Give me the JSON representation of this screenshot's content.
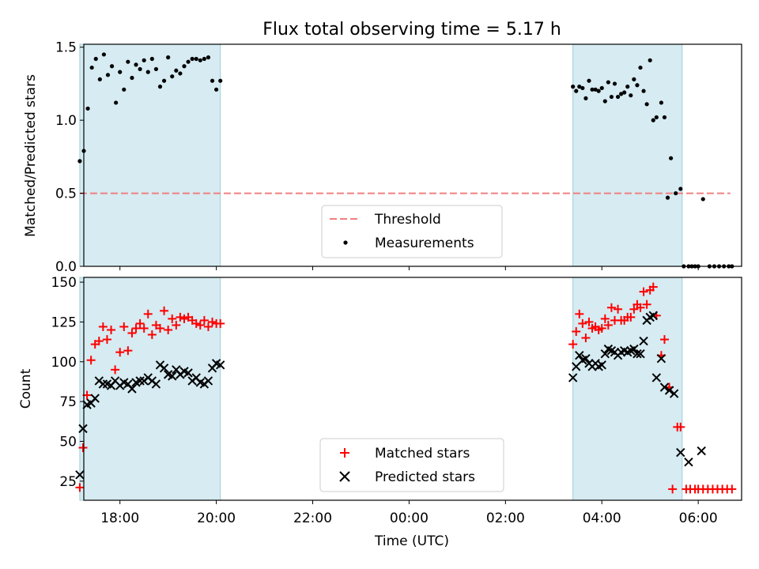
{
  "chart_data": [
    {
      "type": "scatter",
      "title": "Flux total observing time = 5.17 h",
      "ylabel": "Matched/Predicted stars",
      "xlim": [
        "17:15",
        "06:54"
      ],
      "ylim": [
        0,
        1.52
      ],
      "yticks": [
        "0.0",
        "0.5",
        "1.0",
        "1.5"
      ],
      "ytick_values": [
        0,
        0.5,
        1.0,
        1.5
      ],
      "shaded_intervals": [
        [
          "17:10",
          "20:05"
        ],
        [
          "03:24",
          "05:40"
        ]
      ],
      "threshold": {
        "y": 0.5,
        "x_range": [
          "17:10",
          "06:40"
        ],
        "color": "#f08080"
      },
      "legend": {
        "position": "lower center",
        "entries": [
          "Threshold",
          "Measurements"
        ]
      },
      "series": [
        {
          "name": "Measurements",
          "marker": "dot",
          "color": "#000000",
          "points": [
            [
              "17:10",
              0.72
            ],
            [
              "17:15",
              0.79
            ],
            [
              "17:20",
              1.08
            ],
            [
              "17:25",
              1.36
            ],
            [
              "17:30",
              1.42
            ],
            [
              "17:35",
              1.28
            ],
            [
              "17:40",
              1.45
            ],
            [
              "17:45",
              1.31
            ],
            [
              "17:50",
              1.37
            ],
            [
              "17:55",
              1.12
            ],
            [
              "18:00",
              1.33
            ],
            [
              "18:05",
              1.21
            ],
            [
              "18:10",
              1.4
            ],
            [
              "18:15",
              1.29
            ],
            [
              "18:20",
              1.38
            ],
            [
              "18:25",
              1.35
            ],
            [
              "18:30",
              1.41
            ],
            [
              "18:35",
              1.33
            ],
            [
              "18:40",
              1.42
            ],
            [
              "18:45",
              1.35
            ],
            [
              "18:50",
              1.23
            ],
            [
              "18:55",
              1.27
            ],
            [
              "19:00",
              1.43
            ],
            [
              "19:05",
              1.3
            ],
            [
              "19:10",
              1.34
            ],
            [
              "19:15",
              1.32
            ],
            [
              "19:20",
              1.37
            ],
            [
              "19:25",
              1.4
            ],
            [
              "19:30",
              1.42
            ],
            [
              "19:35",
              1.42
            ],
            [
              "19:40",
              1.41
            ],
            [
              "19:45",
              1.42
            ],
            [
              "19:50",
              1.43
            ],
            [
              "19:55",
              1.27
            ],
            [
              "20:00",
              1.21
            ],
            [
              "20:05",
              1.27
            ],
            [
              "03:24",
              1.23
            ],
            [
              "03:28",
              1.2
            ],
            [
              "03:32",
              1.23
            ],
            [
              "03:36",
              1.22
            ],
            [
              "03:40",
              1.15
            ],
            [
              "03:44",
              1.27
            ],
            [
              "03:48",
              1.21
            ],
            [
              "03:52",
              1.21
            ],
            [
              "03:56",
              1.2
            ],
            [
              "04:00",
              1.22
            ],
            [
              "04:04",
              1.13
            ],
            [
              "04:08",
              1.26
            ],
            [
              "04:12",
              1.16
            ],
            [
              "04:16",
              1.25
            ],
            [
              "04:20",
              1.16
            ],
            [
              "04:24",
              1.18
            ],
            [
              "04:28",
              1.19
            ],
            [
              "04:32",
              1.23
            ],
            [
              "04:36",
              1.17
            ],
            [
              "04:40",
              1.28
            ],
            [
              "04:44",
              1.24
            ],
            [
              "04:48",
              1.36
            ],
            [
              "04:52",
              1.2
            ],
            [
              "04:56",
              1.11
            ],
            [
              "05:00",
              1.41
            ],
            [
              "05:04",
              1.0
            ],
            [
              "05:08",
              1.02
            ],
            [
              "05:14",
              1.12
            ],
            [
              "05:18",
              1.02
            ],
            [
              "05:22",
              0.47
            ],
            [
              "05:26",
              0.74
            ],
            [
              "05:32",
              0.5
            ],
            [
              "05:38",
              0.53
            ],
            [
              "05:42",
              0.0
            ],
            [
              "05:48",
              0.0
            ],
            [
              "05:52",
              0.0
            ],
            [
              "05:56",
              0.0
            ],
            [
              "06:00",
              0.0
            ],
            [
              "06:06",
              0.46
            ],
            [
              "06:14",
              0.0
            ],
            [
              "06:20",
              0.0
            ],
            [
              "06:26",
              0.0
            ],
            [
              "06:32",
              0.0
            ],
            [
              "06:38",
              0.0
            ],
            [
              "06:42",
              0.0
            ]
          ]
        }
      ]
    },
    {
      "type": "scatter",
      "xlabel": "Time (UTC)",
      "ylabel": "Count",
      "xlim": [
        "17:15",
        "06:54"
      ],
      "ylim": [
        13,
        153
      ],
      "xticks": [
        "18:00",
        "20:00",
        "22:00",
        "00:00",
        "02:00",
        "04:00",
        "06:00"
      ],
      "yticks": [
        "25",
        "50",
        "75",
        "100",
        "125",
        "150"
      ],
      "ytick_values": [
        25,
        50,
        75,
        100,
        125,
        150
      ],
      "shaded_intervals": [
        [
          "17:10",
          "20:05"
        ],
        [
          "03:24",
          "05:40"
        ]
      ],
      "legend": {
        "position": "lower center",
        "entries": [
          "Matched stars",
          "Predicted stars"
        ]
      },
      "series": [
        {
          "name": "Matched stars",
          "marker": "plus",
          "color": "#ff0000",
          "points": [
            [
              "17:10",
              21
            ],
            [
              "17:14",
              46
            ],
            [
              "17:19",
              79
            ],
            [
              "17:24",
              101
            ],
            [
              "17:29",
              111
            ],
            [
              "17:34",
              113
            ],
            [
              "17:39",
              122
            ],
            [
              "17:44",
              114
            ],
            [
              "17:49",
              120
            ],
            [
              "17:54",
              95
            ],
            [
              "18:00",
              106
            ],
            [
              "18:05",
              122
            ],
            [
              "18:10",
              107
            ],
            [
              "18:15",
              118
            ],
            [
              "18:20",
              121
            ],
            [
              "18:25",
              124
            ],
            [
              "18:30",
              121
            ],
            [
              "18:35",
              130
            ],
            [
              "18:40",
              117
            ],
            [
              "18:45",
              123
            ],
            [
              "18:50",
              121
            ],
            [
              "18:55",
              132
            ],
            [
              "19:00",
              120
            ],
            [
              "19:05",
              127
            ],
            [
              "19:10",
              123
            ],
            [
              "19:15",
              128
            ],
            [
              "19:20",
              127
            ],
            [
              "19:25",
              128
            ],
            [
              "19:30",
              126
            ],
            [
              "19:35",
              124
            ],
            [
              "19:40",
              123
            ],
            [
              "19:45",
              126
            ],
            [
              "19:50",
              122
            ],
            [
              "19:55",
              125
            ],
            [
              "20:00",
              124
            ],
            [
              "20:05",
              124
            ],
            [
              "03:24",
              111
            ],
            [
              "03:28",
              119
            ],
            [
              "03:32",
              130
            ],
            [
              "03:36",
              124
            ],
            [
              "03:40",
              115
            ],
            [
              "03:44",
              125
            ],
            [
              "03:48",
              121
            ],
            [
              "03:52",
              122
            ],
            [
              "03:56",
              120
            ],
            [
              "04:00",
              121
            ],
            [
              "04:04",
              127
            ],
            [
              "04:08",
              123
            ],
            [
              "04:12",
              134
            ],
            [
              "04:16",
              126
            ],
            [
              "04:20",
              133
            ],
            [
              "04:24",
              126
            ],
            [
              "04:28",
              126
            ],
            [
              "04:32",
              128
            ],
            [
              "04:36",
              128
            ],
            [
              "04:40",
              133
            ],
            [
              "04:44",
              136
            ],
            [
              "04:48",
              134
            ],
            [
              "04:52",
              144
            ],
            [
              "04:56",
              136
            ],
            [
              "05:00",
              145
            ],
            [
              "05:04",
              147
            ],
            [
              "05:08",
              129
            ],
            [
              "05:14",
              104
            ],
            [
              "05:18",
              114
            ],
            [
              "05:24",
              84
            ],
            [
              "05:28",
              20
            ],
            [
              "05:34",
              59
            ],
            [
              "05:38",
              59
            ],
            [
              "05:45",
              20
            ],
            [
              "05:50",
              20
            ],
            [
              "05:56",
              20
            ],
            [
              "06:00",
              20
            ],
            [
              "06:06",
              20
            ],
            [
              "06:12",
              20
            ],
            [
              "06:18",
              20
            ],
            [
              "06:24",
              20
            ],
            [
              "06:30",
              20
            ],
            [
              "06:36",
              20
            ],
            [
              "06:42",
              20
            ]
          ]
        },
        {
          "name": "Predicted stars",
          "marker": "x",
          "color": "#000000",
          "points": [
            [
              "17:10",
              29
            ],
            [
              "17:14",
              58
            ],
            [
              "17:19",
              73
            ],
            [
              "17:24",
              74
            ],
            [
              "17:29",
              77
            ],
            [
              "17:34",
              88
            ],
            [
              "17:39",
              86
            ],
            [
              "17:44",
              86
            ],
            [
              "17:49",
              85
            ],
            [
              "17:54",
              88
            ],
            [
              "18:00",
              85
            ],
            [
              "18:05",
              87
            ],
            [
              "18:10",
              86
            ],
            [
              "18:15",
              83
            ],
            [
              "18:20",
              87
            ],
            [
              "18:25",
              88
            ],
            [
              "18:30",
              88
            ],
            [
              "18:35",
              90
            ],
            [
              "18:40",
              88
            ],
            [
              "18:45",
              86
            ],
            [
              "18:50",
              98
            ],
            [
              "18:55",
              96
            ],
            [
              "19:00",
              92
            ],
            [
              "19:05",
              91
            ],
            [
              "19:10",
              95
            ],
            [
              "19:15",
              92
            ],
            [
              "19:20",
              94
            ],
            [
              "19:25",
              93
            ],
            [
              "19:30",
              88
            ],
            [
              "19:35",
              90
            ],
            [
              "19:40",
              87
            ],
            [
              "19:45",
              86
            ],
            [
              "19:50",
              88
            ],
            [
              "19:55",
              96
            ],
            [
              "20:00",
              99
            ],
            [
              "20:05",
              98
            ],
            [
              "03:24",
              90
            ],
            [
              "03:28",
              97
            ],
            [
              "03:32",
              104
            ],
            [
              "03:36",
              101
            ],
            [
              "03:40",
              102
            ],
            [
              "03:44",
              99
            ],
            [
              "03:48",
              97
            ],
            [
              "03:52",
              99
            ],
            [
              "03:56",
              97
            ],
            [
              "04:00",
              98
            ],
            [
              "04:04",
              105
            ],
            [
              "04:08",
              108
            ],
            [
              "04:12",
              107
            ],
            [
              "04:16",
              106
            ],
            [
              "04:20",
              104
            ],
            [
              "04:24",
              106
            ],
            [
              "04:28",
              107
            ],
            [
              "04:32",
              106
            ],
            [
              "04:36",
              107
            ],
            [
              "04:40",
              108
            ],
            [
              "04:44",
              105
            ],
            [
              "04:48",
              105
            ],
            [
              "04:52",
              113
            ],
            [
              "04:56",
              126
            ],
            [
              "05:00",
              128
            ],
            [
              "05:04",
              129
            ],
            [
              "05:08",
              90
            ],
            [
              "05:14",
              102
            ],
            [
              "05:18",
              84
            ],
            [
              "05:24",
              82
            ],
            [
              "05:30",
              80
            ],
            [
              "05:38",
              43
            ],
            [
              "05:48",
              37
            ],
            [
              "06:04",
              44
            ]
          ]
        }
      ]
    }
  ]
}
